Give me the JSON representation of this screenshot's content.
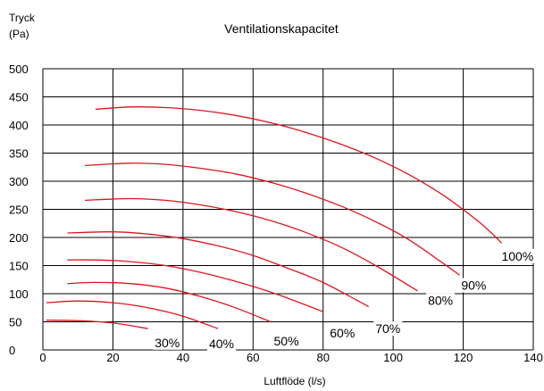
{
  "chart_data": {
    "type": "line",
    "title": "Ventilationskapacitet",
    "ylabel": [
      "Tryck",
      "(Pa)"
    ],
    "xlabel": "Luftflöde (l/s)",
    "xlim": [
      0,
      140
    ],
    "ylim": [
      0,
      500
    ],
    "xticks": [
      0,
      20,
      40,
      60,
      80,
      100,
      120,
      140
    ],
    "yticks": [
      0,
      50,
      100,
      150,
      200,
      250,
      300,
      350,
      400,
      450,
      500
    ],
    "grid": true,
    "line_color": "#e0141e",
    "series": [
      {
        "name": "30%",
        "x": [
          1,
          10,
          20,
          30
        ],
        "y": [
          53,
          52,
          48,
          38
        ]
      },
      {
        "name": "40%",
        "x": [
          1,
          10,
          20,
          30,
          40,
          50
        ],
        "y": [
          84,
          87,
          84,
          75,
          60,
          38
        ]
      },
      {
        "name": "50%",
        "x": [
          7,
          15,
          25,
          35,
          45,
          55,
          65
        ],
        "y": [
          118,
          120,
          118,
          110,
          95,
          75,
          50
        ]
      },
      {
        "name": "60%",
        "x": [
          7,
          15,
          25,
          35,
          45,
          55,
          65,
          75,
          80
        ],
        "y": [
          160,
          160,
          157,
          150,
          138,
          122,
          103,
          80,
          68
        ]
      },
      {
        "name": "70%",
        "x": [
          7,
          20,
          30,
          40,
          50,
          60,
          70,
          80,
          93
        ],
        "y": [
          208,
          210,
          206,
          198,
          185,
          168,
          145,
          120,
          77
        ]
      },
      {
        "name": "80%",
        "x": [
          12,
          25,
          35,
          45,
          55,
          65,
          75,
          85,
          95,
          107
        ],
        "y": [
          266,
          269,
          266,
          258,
          246,
          230,
          209,
          183,
          150,
          105
        ]
      },
      {
        "name": "90%",
        "x": [
          12,
          25,
          35,
          45,
          55,
          65,
          75,
          85,
          95,
          105,
          119
        ],
        "y": [
          328,
          332,
          330,
          323,
          313,
          298,
          279,
          256,
          228,
          194,
          133
        ]
      },
      {
        "name": "100%",
        "x": [
          15,
          25,
          35,
          45,
          55,
          65,
          75,
          85,
          95,
          105,
          115,
          125,
          131
        ],
        "y": [
          428,
          432,
          431,
          426,
          417,
          404,
          387,
          366,
          341,
          310,
          272,
          225,
          190
        ]
      }
    ],
    "annotations": [
      {
        "text": "30%",
        "x": 35.5,
        "y": 13
      },
      {
        "text": "40%",
        "x": 51,
        "y": 11
      },
      {
        "text": "50%",
        "x": 69.5,
        "y": 16
      },
      {
        "text": "60%",
        "x": 85.5,
        "y": 30
      },
      {
        "text": "70%",
        "x": 98.5,
        "y": 38
      },
      {
        "text": "80%",
        "x": 113.5,
        "y": 88
      },
      {
        "text": "90%",
        "x": 123,
        "y": 115
      },
      {
        "text": "100%",
        "x": 135.5,
        "y": 167
      }
    ]
  }
}
